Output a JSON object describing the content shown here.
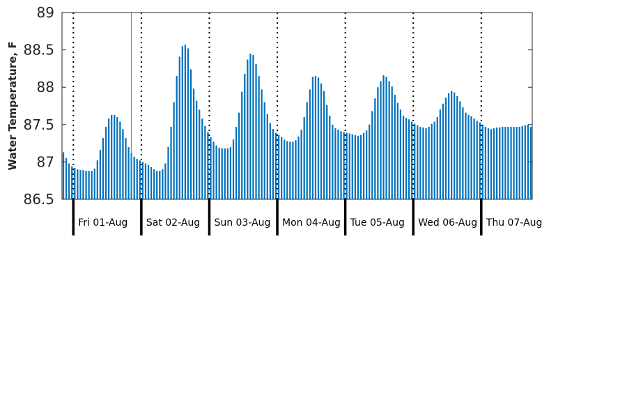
{
  "chart_data": {
    "type": "bar",
    "title": "",
    "xlabel": "",
    "ylabel": "Water Temperature, F",
    "ylim": [
      86.5,
      89
    ],
    "yticks": [
      86.5,
      87,
      87.5,
      88,
      88.5,
      89
    ],
    "ytick_labels": [
      "86.5",
      "87",
      "87.5",
      "88",
      "88.5",
      "89"
    ],
    "x_start": "2025-07-31 20:00",
    "x_interval_hours": 1,
    "x_end": "2025-08-07 18:00",
    "day_labels": [
      "Fri 01-Aug",
      "Sat 02-Aug",
      "Sun 03-Aug",
      "Mon 04-Aug",
      "Tue 05-Aug",
      "Wed 06-Aug",
      "Thu 07-Aug"
    ],
    "marker_line_x": "2025-08-01 20:30",
    "grid": false,
    "legend": "none",
    "colors": {
      "bar": "#0072BD",
      "marker_line": "#E8443A",
      "day_divider": "#000000"
    },
    "values": [
      87.13,
      87.05,
      86.98,
      86.94,
      86.92,
      86.9,
      86.89,
      86.89,
      86.88,
      86.88,
      86.88,
      86.91,
      87.02,
      87.16,
      87.32,
      87.47,
      87.58,
      87.63,
      87.63,
      87.6,
      87.54,
      87.44,
      87.32,
      87.2,
      87.12,
      87.07,
      87.04,
      87.02,
      87.0,
      86.98,
      86.96,
      86.93,
      86.9,
      86.88,
      86.88,
      86.9,
      86.98,
      87.2,
      87.47,
      87.8,
      88.15,
      88.41,
      88.55,
      88.57,
      88.52,
      88.24,
      87.98,
      87.82,
      87.7,
      87.58,
      87.48,
      87.4,
      87.33,
      87.27,
      87.22,
      87.19,
      87.18,
      87.18,
      87.18,
      87.2,
      87.3,
      87.47,
      87.66,
      87.94,
      88.18,
      88.37,
      88.45,
      88.43,
      88.31,
      88.15,
      87.97,
      87.8,
      87.64,
      87.52,
      87.44,
      87.39,
      87.36,
      87.33,
      87.3,
      87.28,
      87.27,
      87.27,
      87.29,
      87.34,
      87.43,
      87.6,
      87.8,
      87.97,
      88.14,
      88.15,
      88.13,
      88.05,
      87.95,
      87.76,
      87.62,
      87.5,
      87.45,
      87.43,
      87.41,
      87.4,
      87.39,
      87.38,
      87.37,
      87.36,
      87.35,
      87.36,
      87.39,
      87.42,
      87.5,
      87.68,
      87.85,
      88.0,
      88.08,
      88.16,
      88.14,
      88.08,
      88.01,
      87.9,
      87.79,
      87.7,
      87.62,
      87.59,
      87.57,
      87.54,
      87.51,
      87.49,
      87.47,
      87.46,
      87.45,
      87.47,
      87.51,
      87.54,
      87.6,
      87.7,
      87.78,
      87.86,
      87.92,
      87.95,
      87.93,
      87.88,
      87.81,
      87.73,
      87.66,
      87.63,
      87.61,
      87.58,
      87.55,
      87.53,
      87.5,
      87.47,
      87.45,
      87.44,
      87.45,
      87.46,
      87.46,
      87.47,
      87.47,
      87.47,
      87.47,
      87.47,
      87.47,
      87.47,
      87.48,
      87.49,
      87.5,
      87.47
    ]
  }
}
